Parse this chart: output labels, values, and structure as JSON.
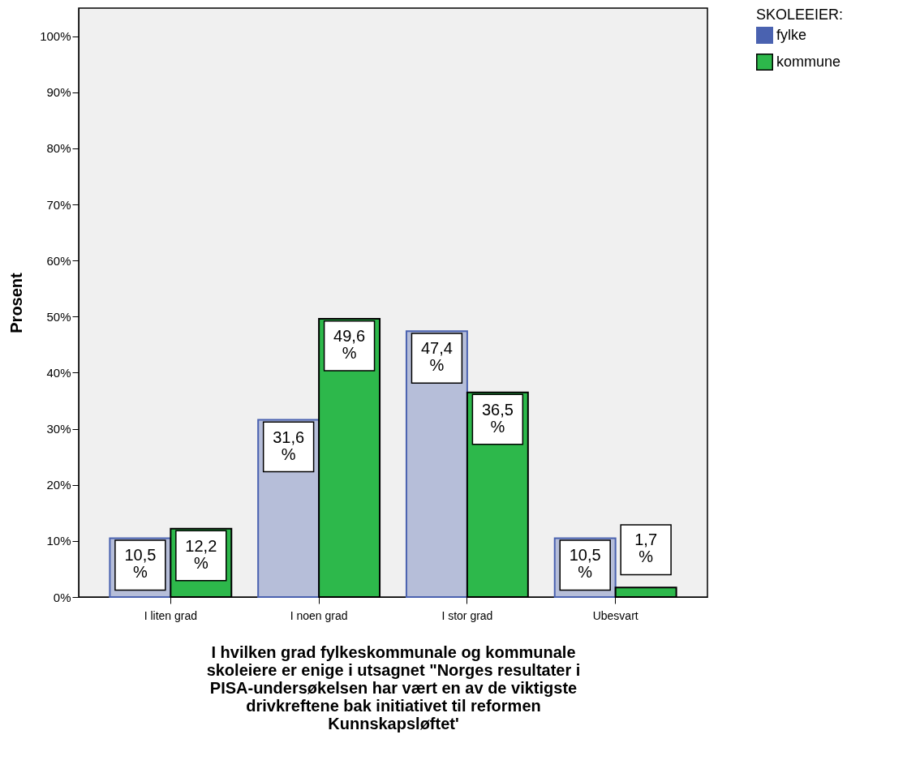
{
  "chart_data": {
    "type": "bar",
    "xlabel": "I hvilken grad fylkeskommunale og kommunale skoleiere er enige i utsagnet \"Norges resultater i PISA-undersøkelsen har vært en av de viktigste drivkreftene bak initiativet til reformen Kunnskapsløftet'",
    "ylabel": "Prosent",
    "legend_title": "SKOLEEIER:",
    "categories": [
      "I liten grad",
      "I noen grad",
      "I stor grad",
      "Ubesvart"
    ],
    "series": [
      {
        "name": "fylke",
        "color": "#4a62b0",
        "values": [
          10.5,
          31.6,
          47.4,
          10.5
        ],
        "value_labels": [
          "10,5 %",
          "31,6 %",
          "47,4 %",
          "10,5 %"
        ]
      },
      {
        "name": "kommune",
        "color": "#2db84b",
        "values": [
          12.2,
          49.6,
          36.5,
          1.7
        ],
        "value_labels": [
          "12,2 %",
          "49,6 %",
          "36,5 %",
          "1,7 %"
        ]
      }
    ],
    "ylim": [
      0,
      105
    ],
    "yticks": [
      {
        "value": 0,
        "label": "0%"
      },
      {
        "value": 10,
        "label": "10%"
      },
      {
        "value": 20,
        "label": "20%"
      },
      {
        "value": 30,
        "label": "30%"
      },
      {
        "value": 40,
        "label": "40%"
      },
      {
        "value": 50,
        "label": "50%"
      },
      {
        "value": 60,
        "label": "60%"
      },
      {
        "value": 70,
        "label": "70%"
      },
      {
        "value": 80,
        "label": "80%"
      },
      {
        "value": 90,
        "label": "90%"
      },
      {
        "value": 100,
        "label": "100%"
      }
    ],
    "grid": false,
    "legend": "top right"
  }
}
